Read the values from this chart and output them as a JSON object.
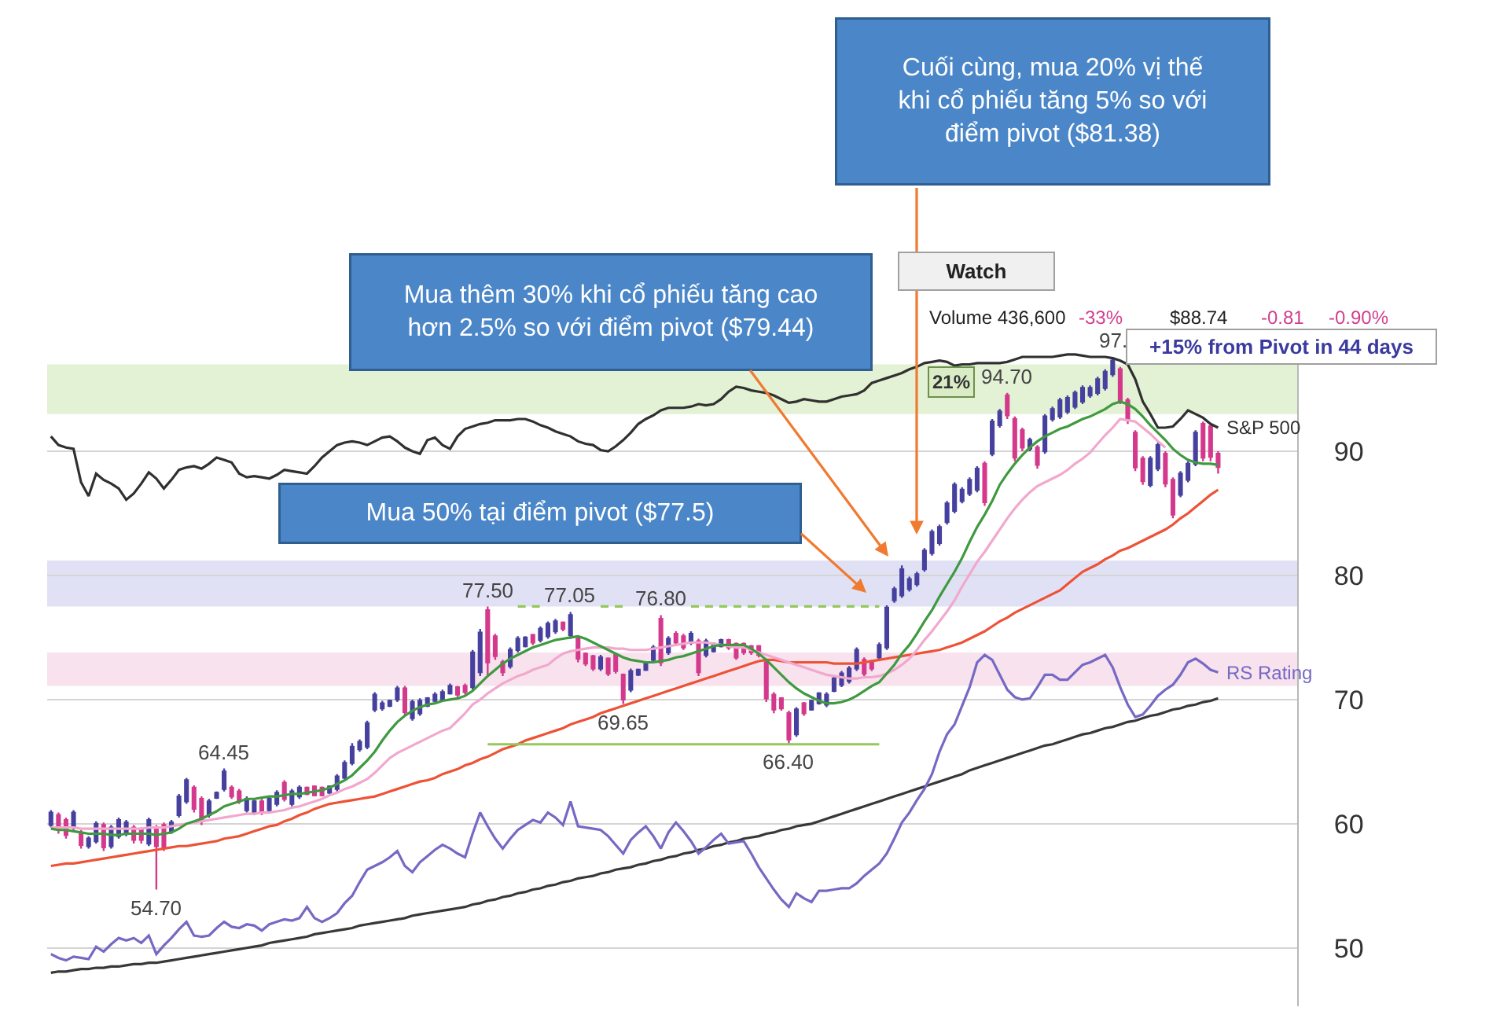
{
  "chart_data": {
    "type": "candlestick",
    "categories": [
      null,
      null,
      null,
      null,
      null,
      null,
      null,
      null,
      null,
      null,
      null,
      null,
      null,
      null,
      null,
      null,
      null,
      null,
      null,
      null,
      null,
      null,
      null,
      null,
      null,
      null,
      null,
      null,
      null,
      null,
      null,
      null,
      null,
      null,
      null,
      null,
      null,
      null,
      null,
      null,
      null,
      null,
      null,
      null,
      null,
      null,
      null,
      null,
      null,
      null,
      null,
      null,
      null,
      null,
      null,
      null,
      null,
      null,
      null,
      null,
      null,
      null,
      null,
      null,
      null,
      null,
      null,
      null,
      null,
      null,
      null,
      null,
      null,
      null,
      null,
      null,
      null,
      null,
      null,
      null,
      null,
      null,
      null,
      null,
      null,
      null,
      null,
      null,
      null,
      null,
      null,
      null,
      null,
      null,
      null,
      null,
      null,
      null,
      null,
      null,
      null,
      null,
      null,
      null,
      null,
      null,
      null,
      null,
      null,
      null,
      null,
      null,
      null,
      null,
      null,
      null,
      null,
      null,
      null,
      null,
      null,
      null,
      null,
      null,
      null,
      null,
      null,
      null,
      null,
      null,
      null,
      null,
      null,
      null,
      null,
      null,
      null,
      null,
      null,
      null,
      null,
      null,
      null,
      null,
      null,
      null,
      null,
      null,
      null,
      null,
      null,
      null,
      null,
      null,
      null,
      null,
      null,
      null,
      null,
      null,
      null,
      null,
      null,
      null,
      null,
      null
    ],
    "ohlc": [
      [
        59.9,
        61.1,
        59.7,
        60.9
      ],
      [
        60.7,
        60.9,
        59.2,
        59.5
      ],
      [
        60.3,
        60.5,
        58.8,
        59.1
      ],
      [
        59.7,
        61.1,
        59.5,
        60.9
      ],
      [
        59.3,
        59.5,
        58.0,
        58.3
      ],
      [
        58.2,
        59.0,
        58.0,
        58.8
      ],
      [
        58.6,
        60.2,
        58.4,
        60.0
      ],
      [
        59.9,
        60.1,
        57.8,
        58.1
      ],
      [
        58.2,
        59.9,
        58.0,
        59.7
      ],
      [
        59.0,
        60.5,
        58.8,
        60.3
      ],
      [
        59.2,
        60.3,
        59.0,
        60.1
      ],
      [
        59.7,
        59.9,
        58.4,
        58.7
      ],
      [
        59.5,
        59.7,
        58.4,
        58.7
      ],
      [
        58.4,
        60.5,
        58.2,
        60.3
      ],
      [
        59.7,
        59.9,
        54.7,
        58.2
      ],
      [
        59.9,
        60.1,
        57.8,
        58.1
      ],
      [
        59.4,
        60.3,
        59.2,
        60.1
      ],
      [
        60.7,
        62.4,
        60.5,
        62.2
      ],
      [
        61.8,
        63.7,
        61.6,
        63.5
      ],
      [
        62.9,
        63.1,
        60.9,
        61.2
      ],
      [
        62.0,
        62.2,
        59.9,
        60.2
      ],
      [
        60.7,
        62.0,
        60.5,
        61.8
      ],
      [
        62.1,
        62.6,
        62.0,
        62.5
      ],
      [
        62.8,
        64.45,
        62.6,
        64.2
      ],
      [
        62.9,
        63.1,
        62.0,
        62.2
      ],
      [
        62.6,
        62.8,
        61.6,
        61.8
      ],
      [
        61.1,
        62.2,
        60.9,
        62.0
      ],
      [
        60.9,
        62.0,
        60.7,
        61.8
      ],
      [
        61.8,
        62.0,
        60.7,
        60.9
      ],
      [
        61.1,
        62.2,
        60.9,
        62.0
      ],
      [
        61.6,
        62.7,
        61.4,
        62.5
      ],
      [
        63.3,
        63.5,
        61.8,
        62.0
      ],
      [
        61.6,
        62.8,
        61.4,
        62.6
      ],
      [
        62.2,
        63.1,
        62.0,
        62.9
      ],
      [
        62.9,
        63.0,
        62.3,
        62.4
      ],
      [
        63.0,
        63.1,
        62.2,
        62.3
      ],
      [
        62.9,
        63.0,
        62.2,
        62.3
      ],
      [
        62.5,
        63.1,
        62.4,
        63.0
      ],
      [
        62.8,
        64.0,
        62.6,
        63.8
      ],
      [
        63.7,
        65.1,
        63.5,
        64.9
      ],
      [
        64.9,
        66.5,
        64.7,
        66.2
      ],
      [
        66.0,
        66.8,
        65.8,
        66.6
      ],
      [
        66.2,
        68.3,
        66.0,
        68.1
      ],
      [
        69.2,
        70.6,
        69.0,
        70.4
      ],
      [
        69.3,
        69.9,
        69.1,
        69.7
      ],
      [
        69.5,
        70.0,
        69.4,
        69.9
      ],
      [
        70.0,
        71.1,
        69.8,
        70.9
      ],
      [
        70.9,
        71.1,
        68.7,
        69.0
      ],
      [
        68.5,
        70.0,
        68.3,
        69.8
      ],
      [
        68.9,
        70.1,
        68.7,
        69.9
      ],
      [
        69.5,
        70.2,
        69.4,
        70.1
      ],
      [
        69.9,
        70.6,
        69.8,
        70.4
      ],
      [
        70.0,
        70.8,
        69.8,
        70.6
      ],
      [
        70.5,
        71.3,
        70.4,
        71.1
      ],
      [
        71.0,
        71.1,
        70.2,
        70.4
      ],
      [
        71.1,
        71.3,
        70.4,
        70.6
      ],
      [
        71.0,
        74.0,
        70.8,
        73.8
      ],
      [
        72.2,
        75.7,
        71.9,
        75.4
      ],
      [
        77.2,
        77.5,
        71.9,
        73.0
      ],
      [
        75.1,
        75.3,
        73.2,
        73.5
      ],
      [
        73.0,
        73.2,
        71.9,
        72.2
      ],
      [
        72.7,
        74.2,
        72.5,
        74.0
      ],
      [
        74.0,
        75.1,
        73.8,
        74.9
      ],
      [
        74.3,
        75.1,
        74.2,
        75.0
      ],
      [
        75.2,
        75.3,
        74.4,
        74.6
      ],
      [
        74.8,
        75.9,
        74.6,
        75.7
      ],
      [
        75.1,
        76.3,
        74.9,
        76.1
      ],
      [
        75.5,
        76.5,
        75.3,
        76.3
      ],
      [
        76.2,
        76.3,
        75.5,
        75.7
      ],
      [
        75.2,
        77.05,
        74.9,
        76.8
      ],
      [
        74.9,
        75.1,
        73.0,
        73.3
      ],
      [
        73.7,
        73.8,
        72.7,
        72.9
      ],
      [
        73.5,
        73.6,
        72.3,
        72.5
      ],
      [
        72.5,
        73.6,
        72.3,
        73.4
      ],
      [
        73.3,
        73.4,
        71.9,
        72.1
      ],
      [
        73.6,
        73.8,
        72.1,
        72.3
      ],
      [
        72.0,
        72.1,
        69.65,
        70.0
      ],
      [
        70.8,
        72.5,
        70.6,
        72.3
      ],
      [
        72.0,
        72.5,
        71.9,
        72.4
      ],
      [
        72.4,
        73.0,
        72.3,
        72.9
      ],
      [
        73.2,
        74.4,
        73.0,
        74.2
      ],
      [
        76.5,
        76.8,
        72.7,
        73.0
      ],
      [
        73.8,
        75.1,
        73.6,
        74.9
      ],
      [
        75.3,
        75.5,
        74.4,
        74.6
      ],
      [
        75.1,
        75.3,
        74.0,
        74.2
      ],
      [
        74.6,
        75.5,
        74.4,
        75.3
      ],
      [
        74.7,
        74.9,
        71.9,
        72.2
      ],
      [
        73.6,
        74.9,
        73.4,
        74.7
      ],
      [
        73.9,
        74.6,
        73.8,
        74.5
      ],
      [
        74.3,
        74.9,
        74.2,
        74.8
      ],
      [
        74.8,
        74.9,
        74.0,
        74.2
      ],
      [
        74.5,
        74.6,
        73.2,
        73.4
      ],
      [
        74.5,
        74.6,
        73.6,
        73.8
      ],
      [
        74.3,
        74.4,
        73.6,
        73.8
      ],
      [
        74.3,
        74.4,
        73.4,
        73.6
      ],
      [
        73.0,
        73.2,
        69.8,
        70.1
      ],
      [
        70.4,
        70.6,
        68.9,
        69.2
      ],
      [
        70.1,
        70.2,
        69.1,
        69.3
      ],
      [
        68.9,
        69.1,
        66.4,
        66.8
      ],
      [
        67.2,
        69.4,
        67.0,
        69.2
      ],
      [
        69.7,
        69.8,
        68.7,
        68.9
      ],
      [
        69.2,
        70.0,
        69.1,
        69.9
      ],
      [
        69.7,
        70.6,
        69.6,
        70.5
      ],
      [
        69.6,
        70.6,
        69.4,
        70.4
      ],
      [
        70.7,
        71.9,
        70.6,
        71.7
      ],
      [
        71.2,
        72.3,
        71.0,
        72.1
      ],
      [
        71.5,
        72.7,
        71.3,
        72.5
      ],
      [
        72.5,
        74.2,
        72.3,
        74.0
      ],
      [
        73.2,
        73.4,
        71.9,
        72.1
      ],
      [
        73.1,
        73.2,
        72.3,
        72.5
      ],
      [
        73.4,
        74.6,
        73.2,
        74.4
      ],
      [
        74.2,
        77.6,
        74.0,
        77.4
      ],
      [
        78.0,
        79.1,
        77.8,
        78.9
      ],
      [
        78.4,
        80.8,
        78.2,
        80.5
      ],
      [
        78.9,
        79.9,
        78.7,
        79.7
      ],
      [
        79.3,
        80.3,
        79.1,
        80.1
      ],
      [
        80.5,
        82.2,
        80.3,
        82.0
      ],
      [
        81.8,
        83.7,
        81.6,
        83.5
      ],
      [
        82.6,
        84.1,
        82.4,
        83.9
      ],
      [
        84.3,
        86.0,
        84.1,
        85.8
      ],
      [
        85.2,
        87.5,
        85.0,
        87.3
      ],
      [
        86.0,
        87.1,
        85.8,
        86.9
      ],
      [
        86.6,
        87.9,
        86.4,
        87.7
      ],
      [
        86.9,
        88.8,
        86.7,
        88.6
      ],
      [
        89.0,
        89.2,
        85.6,
        85.9
      ],
      [
        89.8,
        92.6,
        89.6,
        92.4
      ],
      [
        92.1,
        93.4,
        91.9,
        93.2
      ],
      [
        94.5,
        94.7,
        92.6,
        92.9
      ],
      [
        92.6,
        92.8,
        89.2,
        89.5
      ],
      [
        91.7,
        91.9,
        90.0,
        90.3
      ],
      [
        90.2,
        91.1,
        90.0,
        90.9
      ],
      [
        90.3,
        90.5,
        88.6,
        88.9
      ],
      [
        90.0,
        93.0,
        89.8,
        92.8
      ],
      [
        92.6,
        93.6,
        92.4,
        93.4
      ],
      [
        92.8,
        94.3,
        92.6,
        94.1
      ],
      [
        93.2,
        94.5,
        93.0,
        94.3
      ],
      [
        93.6,
        94.9,
        93.4,
        94.7
      ],
      [
        94.0,
        95.3,
        93.8,
        95.1
      ],
      [
        94.5,
        95.3,
        94.3,
        95.1
      ],
      [
        94.7,
        96.0,
        94.5,
        95.8
      ],
      [
        95.1,
        96.6,
        94.9,
        96.4
      ],
      [
        96.2,
        97.6,
        96.0,
        97.3
      ],
      [
        96.6,
        96.8,
        93.8,
        94.1
      ],
      [
        94.1,
        94.3,
        92.2,
        92.5
      ],
      [
        91.5,
        91.7,
        88.4,
        88.7
      ],
      [
        89.4,
        89.6,
        87.3,
        87.6
      ],
      [
        87.3,
        89.6,
        87.1,
        89.4
      ],
      [
        88.6,
        90.7,
        88.4,
        90.5
      ],
      [
        89.8,
        90.0,
        87.1,
        87.4
      ],
      [
        87.7,
        87.9,
        84.6,
        84.9
      ],
      [
        86.5,
        88.4,
        86.3,
        88.2
      ],
      [
        87.7,
        89.2,
        87.5,
        89.0
      ],
      [
        89.0,
        91.7,
        88.8,
        91.5
      ],
      [
        92.2,
        92.4,
        89.2,
        89.5
      ],
      [
        92.0,
        92.2,
        89.2,
        89.55
      ],
      [
        89.8,
        90.0,
        88.2,
        88.74
      ],
      null,
      null,
      null,
      null,
      null,
      null,
      null,
      null,
      null,
      null
    ],
    "colors": [
      "#46409e",
      "#d4398c",
      "#d4398c",
      "#46409e",
      "#d4398c",
      "#46409e",
      "#46409e",
      "#d4398c",
      "#46409e",
      "#46409e",
      "#46409e",
      "#d4398c",
      "#d4398c",
      "#46409e",
      "#d4398c",
      "#d4398c",
      "#46409e",
      "#46409e",
      "#46409e",
      "#d4398c",
      "#d4398c",
      "#46409e",
      "#46409e",
      "#46409e",
      "#d4398c",
      "#d4398c",
      "#46409e",
      "#46409e",
      "#d4398c",
      "#46409e",
      "#46409e",
      "#d4398c",
      "#46409e",
      "#46409e",
      "#d4398c",
      "#d4398c",
      "#d4398c",
      "#46409e",
      "#46409e",
      "#46409e",
      "#46409e",
      "#46409e",
      "#46409e",
      "#46409e",
      "#46409e",
      "#46409e",
      "#46409e",
      "#d4398c",
      "#46409e",
      "#46409e",
      "#46409e",
      "#46409e",
      "#46409e",
      "#46409e",
      "#d4398c",
      "#d4398c",
      "#46409e",
      "#46409e",
      "#d4398c",
      "#d4398c",
      "#d4398c",
      "#46409e",
      "#46409e",
      "#46409e",
      "#d4398c",
      "#46409e",
      "#46409e",
      "#46409e",
      "#d4398c",
      "#46409e",
      "#d4398c",
      "#d4398c",
      "#d4398c",
      "#46409e",
      "#d4398c",
      "#d4398c",
      "#d4398c",
      "#46409e",
      "#46409e",
      "#46409e",
      "#46409e",
      "#d4398c",
      "#46409e",
      "#d4398c",
      "#d4398c",
      "#46409e",
      "#d4398c",
      "#46409e",
      "#46409e",
      "#46409e",
      "#d4398c",
      "#d4398c",
      "#d4398c",
      "#d4398c",
      "#d4398c",
      "#d4398c",
      "#d4398c",
      "#d4398c",
      "#d4398c",
      "#46409e",
      "#d4398c",
      "#46409e",
      "#46409e",
      "#46409e",
      "#46409e",
      "#46409e",
      "#46409e",
      "#46409e",
      "#d4398c",
      "#d4398c",
      "#46409e",
      "#46409e",
      "#46409e",
      "#46409e",
      "#46409e",
      "#46409e",
      "#46409e",
      "#46409e",
      "#46409e",
      "#46409e",
      "#46409e",
      "#46409e",
      "#46409e",
      "#46409e",
      "#d4398c",
      "#46409e",
      "#46409e",
      "#d4398c",
      "#d4398c",
      "#d4398c",
      "#46409e",
      "#d4398c",
      "#46409e",
      "#46409e",
      "#46409e",
      "#46409e",
      "#46409e",
      "#46409e",
      "#46409e",
      "#46409e",
      "#46409e",
      "#46409e",
      "#d4398c",
      "#d4398c",
      "#d4398c",
      "#d4398c",
      "#46409e",
      "#46409e",
      "#d4398c",
      "#d4398c",
      "#46409e",
      "#46409e",
      "#46409e",
      "#d4398c",
      "#d4398c",
      "#d4398c",
      null,
      null,
      null,
      null,
      null,
      null,
      null,
      null,
      null,
      null
    ],
    "series": [
      {
        "type": "line",
        "color": "#383838",
        "values": [
          48.0,
          48.1,
          48.1,
          48.2,
          48.3,
          48.3,
          48.4,
          48.4,
          48.5,
          48.5,
          48.6,
          48.7,
          48.7,
          48.8,
          48.8,
          48.9,
          49.0,
          49.1,
          49.2,
          49.3,
          49.4,
          49.5,
          49.6,
          49.7,
          49.8,
          49.9,
          50.0,
          50.1,
          50.2,
          50.4,
          50.5,
          50.6,
          50.7,
          50.8,
          50.9,
          51.1,
          51.2,
          51.3,
          51.4,
          51.5,
          51.6,
          51.8,
          51.9,
          52.0,
          52.1,
          52.2,
          52.3,
          52.4,
          52.6,
          52.7,
          52.8,
          52.9,
          53.0,
          53.1,
          53.2,
          53.3,
          53.5,
          53.6,
          53.8,
          53.9,
          54.1,
          54.2,
          54.4,
          54.5,
          54.7,
          54.8,
          55.0,
          55.1,
          55.3,
          55.4,
          55.6,
          55.7,
          55.8,
          56.0,
          56.1,
          56.3,
          56.4,
          56.5,
          56.7,
          56.8,
          57.0,
          57.1,
          57.3,
          57.4,
          57.6,
          57.7,
          57.9,
          58.0,
          58.2,
          58.3,
          58.5,
          58.6,
          58.8,
          58.9,
          59.0,
          59.2,
          59.3,
          59.5,
          59.6,
          59.8,
          59.9,
          60.0,
          60.2,
          60.4,
          60.6,
          60.8,
          61.0,
          61.2,
          61.4,
          61.6,
          61.8,
          62.0,
          62.2,
          62.4,
          62.6,
          62.8,
          63.0,
          63.2,
          63.4,
          63.6,
          63.8,
          64.0,
          64.3,
          64.5,
          64.7,
          64.9,
          65.1,
          65.3,
          65.5,
          65.7,
          65.9,
          66.1,
          66.3,
          66.4,
          66.6,
          66.8,
          67.0,
          67.2,
          67.3,
          67.5,
          67.7,
          67.8,
          68.0,
          68.2,
          68.3,
          68.5,
          68.7,
          68.8,
          69.0,
          69.2,
          69.3,
          69.5,
          69.6,
          69.8,
          69.9,
          70.1,
          null,
          null,
          null,
          null,
          null,
          null,
          null,
          null,
          null,
          null
        ]
      },
      {
        "type": "line",
        "name": "RS Rating",
        "color": "#7569c4",
        "values": [
          49.5,
          49.2,
          49.0,
          49.3,
          49.2,
          49.1,
          50.1,
          49.7,
          50.3,
          50.8,
          50.6,
          50.8,
          50.4,
          51.0,
          49.5,
          50.2,
          50.8,
          51.5,
          52.1,
          51.0,
          50.9,
          51.0,
          51.6,
          52.1,
          51.7,
          51.6,
          51.9,
          51.8,
          51.4,
          51.9,
          52.1,
          52.3,
          52.2,
          52.4,
          53.3,
          52.4,
          52.1,
          52.4,
          52.8,
          53.6,
          54.2,
          55.3,
          56.3,
          56.6,
          56.9,
          57.3,
          57.8,
          56.6,
          56.1,
          56.9,
          57.4,
          57.9,
          58.3,
          58.0,
          57.6,
          57.3,
          59.2,
          60.9,
          59.8,
          58.8,
          58.0,
          58.8,
          59.5,
          59.9,
          60.3,
          60.1,
          60.9,
          60.5,
          59.9,
          61.8,
          59.8,
          59.7,
          59.6,
          59.5,
          59.0,
          58.3,
          57.6,
          58.7,
          59.3,
          59.8,
          59.0,
          58.0,
          59.3,
          60.1,
          59.4,
          58.6,
          57.6,
          58.1,
          58.7,
          59.2,
          58.4,
          58.5,
          58.6,
          57.6,
          56.5,
          55.6,
          54.7,
          53.9,
          53.3,
          54.4,
          54.0,
          53.7,
          54.6,
          54.6,
          54.7,
          54.8,
          54.8,
          55.2,
          55.8,
          56.3,
          56.8,
          57.6,
          58.8,
          60.1,
          60.9,
          61.9,
          62.8,
          64.0,
          65.8,
          67.2,
          68.0,
          69.5,
          71.0,
          73.0,
          73.6,
          73.2,
          72.0,
          70.8,
          70.2,
          70.0,
          70.1,
          71.0,
          72.0,
          72.0,
          71.6,
          71.6,
          72.2,
          72.8,
          73.0,
          73.3,
          73.6,
          72.6,
          71.0,
          69.6,
          68.6,
          68.8,
          69.5,
          70.3,
          70.8,
          71.2,
          72.0,
          73.0,
          73.3,
          72.9,
          72.4,
          72.2,
          null,
          null,
          null,
          null,
          null,
          null,
          null,
          null,
          null,
          null
        ]
      },
      {
        "type": "line",
        "name": "S&P 500",
        "color": "#303030",
        "values": [
          91.2,
          90.5,
          90.3,
          90.2,
          87.5,
          86.4,
          88.2,
          87.7,
          87.4,
          87.0,
          86.1,
          86.6,
          87.4,
          88.3,
          87.8,
          87.0,
          87.7,
          88.5,
          88.7,
          88.8,
          88.6,
          89.0,
          89.5,
          89.3,
          89.1,
          88.2,
          87.9,
          88.0,
          87.9,
          87.8,
          88.1,
          88.5,
          88.4,
          88.3,
          88.2,
          88.8,
          89.5,
          90.0,
          90.5,
          90.7,
          90.8,
          90.7,
          90.5,
          90.8,
          91.1,
          91.2,
          90.8,
          90.3,
          90.0,
          89.8,
          90.9,
          91.1,
          90.5,
          90.2,
          91.2,
          91.8,
          92.0,
          92.2,
          92.3,
          92.5,
          92.5,
          92.5,
          92.6,
          92.6,
          92.4,
          92.1,
          91.9,
          91.6,
          91.4,
          91.2,
          90.8,
          90.6,
          90.5,
          90.1,
          90.0,
          90.4,
          90.9,
          91.5,
          92.2,
          92.6,
          92.9,
          93.3,
          93.5,
          93.5,
          93.5,
          93.6,
          93.8,
          93.7,
          93.8,
          94.2,
          94.8,
          95.2,
          95.1,
          94.9,
          94.8,
          94.7,
          94.5,
          94.2,
          93.9,
          94.0,
          94.2,
          94.1,
          94.0,
          94.0,
          94.2,
          94.4,
          94.5,
          94.6,
          94.9,
          95.5,
          95.7,
          95.9,
          96.1,
          96.3,
          96.6,
          96.8,
          97.1,
          97.2,
          97.3,
          97.2,
          96.9,
          97.0,
          97.0,
          97.1,
          97.1,
          97.1,
          97.1,
          97.2,
          97.4,
          97.6,
          97.6,
          97.6,
          97.6,
          97.6,
          97.7,
          97.8,
          97.8,
          97.7,
          97.6,
          97.6,
          97.6,
          97.5,
          97.3,
          97.0,
          95.8,
          94.0,
          93.0,
          91.9,
          91.9,
          92.0,
          92.6,
          93.3,
          93.0,
          92.7,
          92.2,
          91.9,
          null,
          null,
          null,
          null,
          null,
          null,
          null,
          null,
          null,
          null
        ]
      },
      {
        "type": "line",
        "color": "#ee5236",
        "values": [
          56.6,
          56.7,
          56.8,
          56.8,
          56.9,
          57.0,
          57.1,
          57.2,
          57.3,
          57.4,
          57.5,
          57.6,
          57.7,
          57.8,
          57.9,
          58.0,
          58.1,
          58.2,
          58.2,
          58.3,
          58.4,
          58.5,
          58.6,
          58.8,
          58.9,
          59.0,
          59.2,
          59.4,
          59.6,
          59.8,
          59.9,
          60.2,
          60.4,
          60.7,
          60.9,
          61.2,
          61.4,
          61.6,
          61.7,
          61.8,
          61.9,
          62.0,
          62.1,
          62.2,
          62.4,
          62.6,
          62.8,
          63.0,
          63.2,
          63.4,
          63.5,
          63.7,
          64.0,
          64.2,
          64.4,
          64.7,
          64.9,
          65.2,
          65.4,
          65.7,
          66.0,
          66.2,
          66.4,
          66.7,
          66.9,
          67.1,
          67.3,
          67.5,
          67.7,
          68.0,
          68.2,
          68.4,
          68.6,
          68.9,
          69.1,
          69.3,
          69.5,
          69.7,
          69.9,
          70.1,
          70.3,
          70.5,
          70.7,
          70.9,
          71.1,
          71.3,
          71.5,
          71.7,
          71.9,
          72.1,
          72.3,
          72.5,
          72.7,
          72.9,
          73.1,
          73.2,
          73.2,
          73.1,
          73.0,
          73.0,
          73.0,
          73.0,
          73.0,
          73.0,
          72.9,
          72.9,
          72.9,
          72.9,
          73.0,
          73.1,
          73.2,
          73.3,
          73.4,
          73.5,
          73.6,
          73.7,
          73.8,
          73.9,
          74.0,
          74.2,
          74.4,
          74.6,
          74.9,
          75.2,
          75.5,
          75.9,
          76.3,
          76.6,
          77.0,
          77.3,
          77.6,
          77.9,
          78.2,
          78.5,
          78.8,
          79.3,
          79.8,
          80.3,
          80.6,
          80.9,
          81.3,
          81.6,
          82.0,
          82.2,
          82.5,
          82.8,
          83.1,
          83.4,
          83.7,
          84.1,
          84.6,
          85.0,
          85.5,
          86.0,
          86.5,
          86.9,
          null,
          null,
          null,
          null,
          null,
          null,
          null,
          null,
          null,
          null
        ]
      },
      {
        "type": "line",
        "color": "#f2a8cd",
        "values": [
          59.7,
          59.7,
          59.7,
          59.7,
          59.6,
          59.6,
          59.6,
          59.6,
          59.6,
          59.6,
          59.6,
          59.6,
          59.6,
          59.7,
          59.7,
          59.7,
          59.8,
          59.9,
          60.0,
          60.1,
          60.2,
          60.3,
          60.4,
          60.5,
          60.6,
          60.7,
          60.8,
          60.8,
          60.9,
          60.9,
          61.0,
          61.1,
          61.3,
          61.4,
          61.6,
          61.8,
          62.0,
          62.3,
          62.5,
          62.8,
          63.0,
          63.3,
          63.6,
          64.1,
          64.7,
          65.3,
          65.7,
          66.0,
          66.3,
          66.6,
          66.9,
          67.2,
          67.5,
          67.7,
          68.3,
          68.9,
          69.6,
          70.0,
          70.5,
          70.9,
          71.3,
          71.6,
          71.9,
          72.1,
          72.4,
          72.6,
          72.8,
          73.3,
          73.7,
          73.9,
          74.0,
          74.1,
          74.2,
          74.2,
          74.2,
          74.1,
          74.1,
          74.0,
          74.0,
          74.0,
          74.1,
          74.2,
          74.3,
          74.4,
          74.5,
          74.6,
          74.6,
          74.6,
          74.5,
          74.4,
          74.3,
          74.2,
          74.2,
          74.0,
          73.8,
          73.6,
          73.4,
          73.2,
          73.0,
          72.8,
          72.6,
          72.4,
          72.2,
          72.0,
          71.9,
          71.8,
          71.7,
          71.7,
          71.8,
          71.8,
          71.9,
          72.1,
          72.4,
          72.8,
          73.3,
          74.0,
          74.8,
          75.5,
          76.3,
          77.1,
          78.0,
          79.1,
          80.1,
          81.1,
          81.9,
          82.8,
          83.7,
          84.6,
          85.4,
          86.1,
          86.7,
          87.2,
          87.5,
          87.8,
          88.1,
          88.5,
          89.0,
          89.4,
          89.9,
          90.6,
          91.3,
          91.9,
          92.6,
          92.5,
          92.4,
          91.9,
          91.4,
          90.8,
          90.3,
          null,
          null,
          null,
          null,
          null,
          null,
          null,
          null,
          null,
          null,
          null,
          null,
          null,
          null,
          null,
          null,
          null
        ]
      },
      {
        "type": "line",
        "color": "#3f9a3f",
        "values": [
          59.6,
          59.5,
          59.5,
          59.4,
          59.3,
          59.2,
          59.2,
          59.2,
          59.1,
          59.1,
          59.2,
          59.2,
          59.2,
          59.2,
          59.1,
          59.2,
          59.3,
          59.6,
          60.0,
          60.2,
          60.4,
          60.7,
          61.0,
          61.4,
          61.6,
          61.8,
          62.0,
          62.0,
          62.1,
          62.2,
          62.2,
          62.3,
          62.4,
          62.4,
          62.5,
          62.6,
          62.7,
          62.9,
          63.2,
          63.5,
          63.9,
          64.5,
          65.1,
          65.8,
          66.7,
          67.5,
          68.2,
          68.7,
          69.1,
          69.4,
          69.6,
          69.7,
          69.9,
          70.0,
          70.1,
          70.3,
          70.7,
          71.3,
          71.9,
          72.4,
          72.9,
          73.3,
          73.6,
          73.9,
          74.2,
          74.4,
          74.6,
          74.8,
          74.9,
          75.0,
          75.1,
          74.9,
          74.6,
          74.3,
          74.0,
          73.7,
          73.4,
          73.2,
          73.1,
          73.0,
          73.0,
          73.1,
          73.2,
          73.4,
          73.5,
          73.7,
          73.9,
          74.1,
          74.3,
          74.4,
          74.4,
          74.4,
          74.4,
          74.1,
          73.7,
          73.2,
          72.6,
          72.0,
          71.4,
          70.9,
          70.5,
          70.2,
          69.9,
          69.7,
          69.7,
          69.8,
          70.0,
          70.3,
          70.7,
          71.1,
          71.4,
          72.1,
          72.8,
          73.7,
          74.4,
          75.3,
          76.3,
          77.2,
          78.3,
          79.3,
          80.3,
          81.4,
          82.7,
          83.9,
          84.9,
          86.0,
          87.3,
          88.2,
          89.0,
          89.7,
          90.3,
          90.8,
          91.2,
          91.5,
          91.8,
          92.0,
          92.3,
          92.6,
          92.8,
          93.1,
          93.4,
          93.8,
          94.0,
          93.8,
          93.4,
          92.8,
          92.1,
          91.5,
          90.9,
          90.2,
          89.7,
          89.3,
          89.1,
          89.0,
          89.0,
          88.9,
          null,
          null,
          null,
          null,
          null,
          null,
          null,
          null,
          null,
          null
        ]
      },
      {
        "type": "line",
        "color": "#93c95a",
        "line_style": "dashed",
        "values": [
          null,
          null,
          null,
          null,
          null,
          null,
          null,
          null,
          null,
          null,
          null,
          null,
          null,
          null,
          null,
          null,
          null,
          null,
          null,
          null,
          null,
          null,
          null,
          null,
          null,
          null,
          null,
          null,
          null,
          null,
          null,
          null,
          null,
          null,
          null,
          null,
          null,
          null,
          null,
          null,
          null,
          null,
          null,
          null,
          null,
          null,
          null,
          null,
          null,
          null,
          null,
          null,
          null,
          null,
          null,
          null,
          null,
          null,
          null,
          null,
          null,
          null,
          77.5,
          77.5,
          77.5,
          77.5,
          null,
          null,
          null,
          null,
          null,
          null,
          null,
          77.5,
          77.5,
          77.5,
          77.5,
          null,
          null,
          null,
          null,
          null,
          null,
          null,
          null,
          77.5,
          77.5,
          77.5,
          77.5,
          77.5,
          77.5,
          77.5,
          77.5,
          77.5,
          77.5,
          77.5,
          77.5,
          77.5,
          77.5,
          77.5,
          77.5,
          77.5,
          77.5,
          77.5,
          77.5,
          77.5,
          77.5,
          77.5,
          77.5,
          77.5,
          77.5,
          null,
          null,
          null,
          null,
          null,
          null,
          null,
          null,
          null,
          null,
          null,
          null,
          null,
          null,
          null,
          null,
          null,
          null,
          null,
          null,
          null,
          null,
          null,
          null,
          null,
          null,
          null,
          null,
          null,
          null,
          null,
          null,
          null,
          null,
          null,
          null,
          null,
          null,
          null,
          null,
          null,
          null,
          null,
          null,
          null,
          null,
          null,
          null,
          null,
          null,
          null,
          null,
          null,
          null,
          null
        ]
      },
      {
        "type": "line",
        "color": "#93c95a",
        "values": [
          null,
          null,
          null,
          null,
          null,
          null,
          null,
          null,
          null,
          null,
          null,
          null,
          null,
          null,
          null,
          null,
          null,
          null,
          null,
          null,
          null,
          null,
          null,
          null,
          null,
          null,
          null,
          null,
          null,
          null,
          null,
          null,
          null,
          null,
          null,
          null,
          null,
          null,
          null,
          null,
          null,
          null,
          null,
          null,
          null,
          null,
          null,
          null,
          null,
          null,
          null,
          null,
          null,
          null,
          null,
          null,
          null,
          null,
          66.4,
          66.4,
          66.4,
          66.4,
          66.4,
          66.4,
          66.4,
          66.4,
          66.4,
          66.4,
          66.4,
          66.4,
          66.4,
          66.4,
          66.4,
          66.4,
          66.4,
          66.4,
          66.4,
          66.4,
          66.4,
          66.4,
          66.4,
          66.4,
          66.4,
          66.4,
          66.4,
          66.4,
          66.4,
          66.4,
          66.4,
          66.4,
          66.4,
          66.4,
          66.4,
          66.4,
          66.4,
          66.4,
          66.4,
          66.4,
          66.4,
          66.4,
          66.4,
          66.4,
          66.4,
          66.4,
          66.4,
          66.4,
          66.4,
          66.4,
          66.4,
          66.4,
          66.4,
          null,
          null,
          null,
          null,
          null,
          null,
          null,
          null,
          null,
          null,
          null,
          null,
          null,
          null,
          null,
          null,
          null,
          null,
          null,
          null,
          null,
          null,
          null,
          null,
          null,
          null,
          null,
          null,
          null,
          null,
          null,
          null,
          null,
          null,
          null,
          null,
          null,
          null,
          null,
          null,
          null,
          null,
          null,
          null,
          null,
          null,
          null,
          null,
          null,
          null,
          null,
          null,
          null,
          null,
          null
        ]
      }
    ],
    "bands": [
      {
        "axis": "y",
        "from": 93.0,
        "to": 97.0,
        "color": "#e3f1d4"
      },
      {
        "axis": "y",
        "from": 77.5,
        "to": 81.2,
        "color": "#e1e1f5"
      },
      {
        "axis": "y",
        "from": 71.1,
        "to": 73.8,
        "color": "#f7e2ed"
      }
    ],
    "ylim": [
      45.3,
      99.5
    ],
    "yticks": [
      50,
      60,
      70,
      80,
      90
    ],
    "grid": "y",
    "tick_labels": "y",
    "annotations": [
      "Cuối cùng, mua 20% vị thế khi cổ phiếu tăng 5% so với điểm pivot ($81.38)",
      "Mua thêm 30% khi cổ phiếu tăng cao hơn 2.5% so với điểm pivot ($79.44)",
      "Mua 50% tại điểm pivot ($77.5)",
      {
        "text": "64.45",
        "y": 64.45
      },
      {
        "text": "54.70",
        "y": 54.7
      },
      {
        "text": "77.50",
        "y": 77.5
      },
      {
        "text": "77.05",
        "y": 77.05
      },
      {
        "text": "76.80",
        "y": 76.8
      },
      {
        "text": "69.65",
        "y": 69.65
      },
      {
        "text": "66.40",
        "y": 66.4
      },
      {
        "text": "94.70",
        "y": 94.7
      },
      {
        "text": "97.",
        "y": 97.6
      },
      "Volume 436,600",
      "-33%",
      "$88.74",
      "-0.81",
      "-0.90%",
      "+15% from Pivot in 44 days",
      "21%",
      "Watch"
    ]
  }
}
